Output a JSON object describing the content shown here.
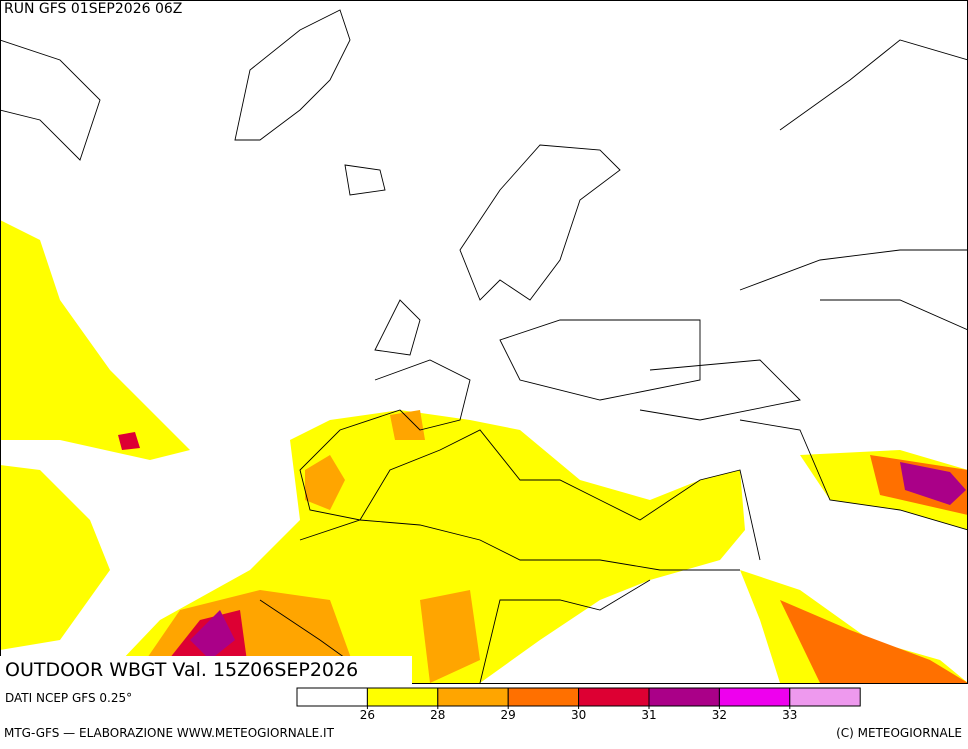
{
  "header": {
    "run": "RUN GFS 01SEP2026 06Z",
    "title": "OUTDOOR WBGT Val. 15Z06SEP2026",
    "source": "DATI NCEP GFS 0.25°"
  },
  "legend": {
    "colors": [
      "#ffffff",
      "#ffff00",
      "#ffa500",
      "#ff7000",
      "#dd0033",
      "#aa0088",
      "#ee00ee",
      "#ee99ee"
    ],
    "thresholds": [
      26,
      28,
      29,
      30,
      31,
      32,
      33
    ]
  },
  "footer": {
    "left": "MTG-GFS — ELABORAZIONE WWW.METEOGIORNALE.IT",
    "right": "(C) METEOGIORNALE"
  }
}
